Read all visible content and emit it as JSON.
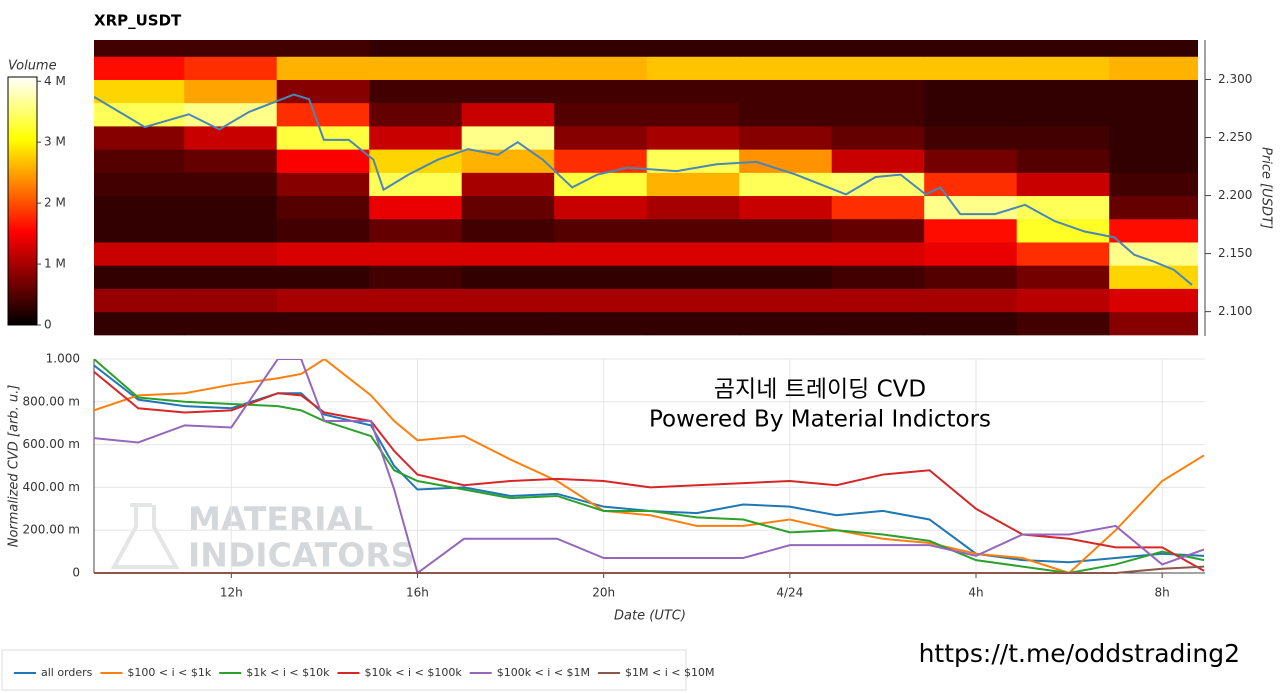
{
  "chart_data": [
    {
      "type": "heatmap",
      "title": "XRP_USDT",
      "colorbar_label": "Volume",
      "ylabel": "Price [USDT]",
      "xlim": [
        9.05,
        32.92
      ],
      "ylim": [
        2.079,
        2.334
      ],
      "yticks": [
        {
          "value": 2.1,
          "label": "2.100"
        },
        {
          "value": 2.15,
          "label": "2.150"
        },
        {
          "value": 2.2,
          "label": "2.200"
        },
        {
          "value": 2.25,
          "label": "2.250"
        },
        {
          "value": 2.3,
          "label": "2.300"
        }
      ],
      "zlim": [
        0,
        4.07
      ],
      "zticks": [
        0,
        {
          "value": 1,
          "label": "1 M"
        },
        {
          "value": 2,
          "label": "2 M"
        },
        {
          "value": 3,
          "label": "3 M"
        },
        {
          "value": 4,
          "label": "4 M"
        }
      ],
      "x_edges": [
        9,
        11,
        13,
        15,
        17,
        19,
        21,
        23,
        25,
        27,
        29,
        31,
        33
      ],
      "y_edges": [
        2.08,
        2.1,
        2.12,
        2.14,
        2.16,
        2.18,
        2.2,
        2.22,
        2.24,
        2.26,
        2.28,
        2.3,
        2.32,
        2.34
      ],
      "z": [
        [
          0.3,
          0.3,
          0.3,
          0.3,
          0.3,
          0.3,
          0.3,
          0.3,
          0.3,
          0.3,
          0.4,
          0.8
        ],
        [
          0.9,
          0.9,
          1.0,
          1.0,
          1.0,
          1.0,
          1.0,
          1.0,
          1.0,
          1.0,
          1.1,
          1.3
        ],
        [
          0.3,
          0.3,
          0.3,
          0.4,
          0.3,
          0.3,
          0.3,
          0.3,
          0.4,
          0.5,
          0.7,
          2.8
        ],
        [
          1.2,
          1.2,
          1.3,
          1.3,
          1.3,
          1.3,
          1.3,
          1.3,
          1.3,
          1.4,
          1.8,
          3.6
        ],
        [
          0.3,
          0.3,
          0.4,
          0.6,
          0.4,
          0.5,
          0.5,
          0.5,
          0.6,
          1.6,
          3.2,
          1.6
        ],
        [
          0.3,
          0.3,
          0.5,
          1.4,
          0.6,
          1.2,
          1.0,
          1.2,
          1.8,
          3.6,
          3.4,
          0.6
        ],
        [
          0.4,
          0.4,
          0.8,
          3.4,
          1.0,
          3.3,
          2.6,
          3.4,
          3.5,
          1.8,
          1.2,
          0.4
        ],
        [
          0.5,
          0.6,
          1.5,
          2.8,
          2.6,
          1.8,
          3.4,
          2.4,
          1.2,
          0.7,
          0.5,
          0.3
        ],
        [
          0.8,
          1.2,
          3.3,
          1.2,
          3.6,
          0.8,
          1.0,
          0.8,
          0.6,
          0.4,
          0.4,
          0.3
        ],
        [
          3.4,
          3.6,
          1.8,
          0.6,
          1.2,
          0.5,
          0.5,
          0.4,
          0.4,
          0.3,
          0.3,
          0.3
        ],
        [
          2.8,
          2.5,
          0.8,
          0.4,
          0.4,
          0.4,
          0.4,
          0.4,
          0.4,
          0.3,
          0.3,
          0.3
        ],
        [
          1.6,
          1.8,
          2.6,
          2.6,
          2.6,
          2.6,
          2.7,
          2.7,
          2.7,
          2.7,
          2.7,
          2.6
        ],
        [
          0.4,
          0.4,
          0.4,
          0.3,
          0.3,
          0.3,
          0.3,
          0.3,
          0.3,
          0.3,
          0.3,
          0.3
        ]
      ],
      "price": {
        "color": "#4a86b8",
        "x": [
          9.05,
          10.15,
          11.1,
          11.76,
          12.4,
          13.37,
          13.7,
          14.02,
          14.56,
          15.09,
          15.31,
          15.85,
          16.49,
          17.14,
          17.78,
          18.21,
          18.75,
          19.39,
          19.93,
          20.58,
          21.65,
          22.51,
          23.37,
          24.23,
          25.31,
          25.95,
          26.49,
          27.03,
          27.35,
          27.78,
          28.53,
          29.18,
          29.82,
          30.47,
          31.11,
          31.54,
          31.97,
          32.4,
          32.79
        ],
        "values": [
          2.285,
          2.259,
          2.27,
          2.257,
          2.272,
          2.287,
          2.283,
          2.248,
          2.248,
          2.231,
          2.205,
          2.218,
          2.231,
          2.24,
          2.235,
          2.246,
          2.231,
          2.207,
          2.218,
          2.224,
          2.221,
          2.227,
          2.229,
          2.218,
          2.201,
          2.216,
          2.218,
          2.201,
          2.207,
          2.184,
          2.184,
          2.192,
          2.178,
          2.169,
          2.164,
          2.149,
          2.143,
          2.136,
          2.123
        ]
      }
    },
    {
      "type": "line",
      "xlabel": "Date (UTC)",
      "ylabel": "Normalized CVD [arb. u.]",
      "grid": true,
      "legend": "bottom",
      "annotation": [
        "곰지네 트레이딩 CVD",
        "Powered By Material Indictors"
      ],
      "xlim": [
        9.05,
        32.92
      ],
      "ylim": [
        0,
        1
      ],
      "xticks": [
        {
          "value": 12,
          "label": "12h"
        },
        {
          "value": 16,
          "label": "16h"
        },
        {
          "value": 20,
          "label": "20h"
        },
        {
          "value": 24,
          "label": "4/24"
        },
        {
          "value": 28,
          "label": "4h"
        },
        {
          "value": 32,
          "label": "8h"
        }
      ],
      "yticks": [
        0,
        {
          "value": 0.2,
          "label": "200.00 m"
        },
        {
          "value": 0.4,
          "label": "400.00 m"
        },
        {
          "value": 0.6,
          "label": "600.00 m"
        },
        {
          "value": 0.8,
          "label": "800.00 m"
        },
        {
          "value": 1,
          "label": "1.000"
        }
      ],
      "x": [
        9.05,
        10,
        11,
        12,
        13,
        13.5,
        14,
        15,
        15.5,
        16,
        17,
        18,
        19,
        20,
        21,
        22,
        23,
        24,
        25,
        26,
        27,
        28,
        29,
        30,
        31,
        32,
        32.9
      ],
      "series": [
        {
          "name": "all orders",
          "color": "#1f77b4",
          "values": [
            0.97,
            0.81,
            0.78,
            0.77,
            0.84,
            0.84,
            0.74,
            0.69,
            0.5,
            0.39,
            0.4,
            0.36,
            0.37,
            0.31,
            0.29,
            0.28,
            0.32,
            0.31,
            0.27,
            0.29,
            0.25,
            0.09,
            0.06,
            0.05,
            0.07,
            0.09,
            0.08
          ]
        },
        {
          "name": "$100 < i < $1k",
          "color": "#ff7f0e",
          "values": [
            0.76,
            0.83,
            0.84,
            0.88,
            0.91,
            0.93,
            1.0,
            0.83,
            0.71,
            0.62,
            0.64,
            0.53,
            0.43,
            0.29,
            0.27,
            0.22,
            0.22,
            0.25,
            0.2,
            0.16,
            0.14,
            0.09,
            0.07,
            0.0,
            0.2,
            0.43,
            0.55
          ]
        },
        {
          "name": "$1k < i < $10k",
          "color": "#2ca02c",
          "values": [
            1.0,
            0.82,
            0.8,
            0.79,
            0.78,
            0.76,
            0.71,
            0.64,
            0.48,
            0.43,
            0.39,
            0.35,
            0.36,
            0.29,
            0.29,
            0.26,
            0.25,
            0.19,
            0.2,
            0.18,
            0.15,
            0.06,
            0.03,
            0.0,
            0.04,
            0.1,
            0.06
          ]
        },
        {
          "name": "$10k < i < $100k",
          "color": "#d62728",
          "values": [
            0.94,
            0.77,
            0.75,
            0.76,
            0.84,
            0.83,
            0.75,
            0.71,
            0.57,
            0.46,
            0.41,
            0.43,
            0.44,
            0.43,
            0.4,
            0.41,
            0.42,
            0.43,
            0.41,
            0.46,
            0.48,
            0.3,
            0.18,
            0.16,
            0.12,
            0.12,
            0.01
          ]
        },
        {
          "name": "$100k < i < $1M",
          "color": "#9467bd",
          "values": [
            0.63,
            0.61,
            0.69,
            0.68,
            1.0,
            1.0,
            0.71,
            0.71,
            0.39,
            0.0,
            0.16,
            0.16,
            0.16,
            0.07,
            0.07,
            0.07,
            0.07,
            0.13,
            0.13,
            0.13,
            0.13,
            0.08,
            0.18,
            0.18,
            0.22,
            0.04,
            0.11
          ]
        },
        {
          "name": "$1M < i < $10M",
          "color": "#8c564b",
          "values": [
            0,
            0,
            0,
            0,
            0,
            0,
            0,
            0,
            0,
            0,
            0,
            0,
            0,
            0,
            0,
            0,
            0,
            0,
            0,
            0,
            0,
            0,
            0,
            0,
            0,
            0.02,
            0.03
          ]
        }
      ]
    }
  ],
  "watermark": [
    "MATERIAL",
    "INDICATORS"
  ],
  "link": "https://t.me/oddstrading2"
}
